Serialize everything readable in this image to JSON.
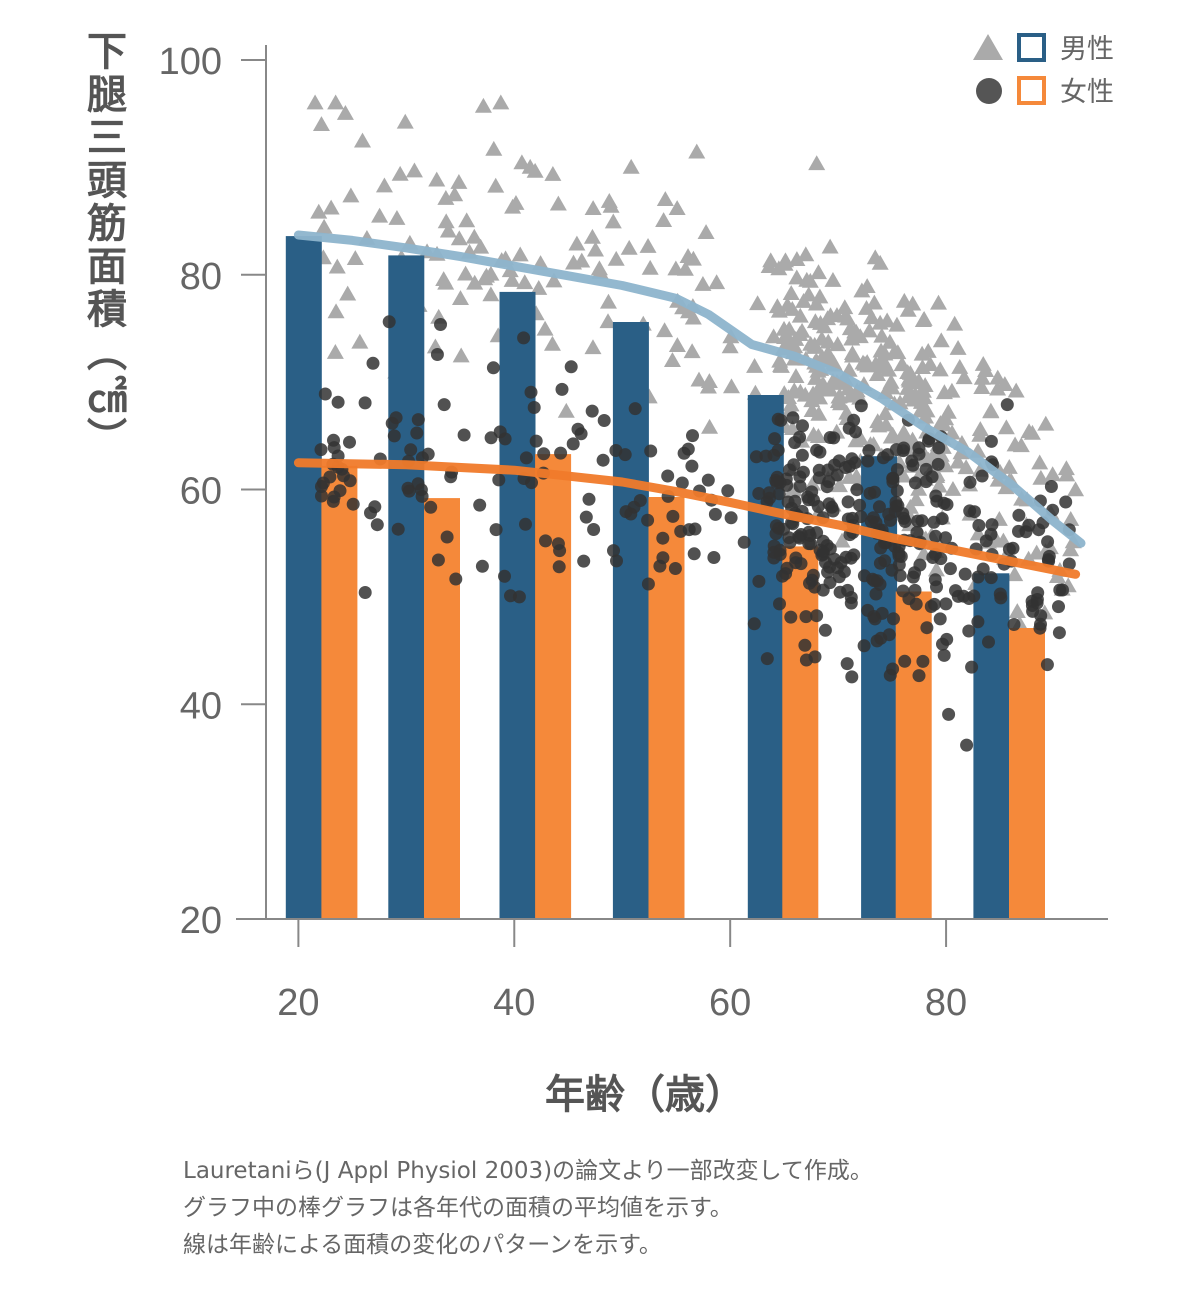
{
  "chart_data": {
    "type": "bar",
    "title": "",
    "xlabel": "年齢（歳）",
    "ylabel": "下腿三頭筋面積（㎠）",
    "xlim": [
      17,
      95
    ],
    "ylim": [
      20,
      100
    ],
    "x_ticks": [
      20,
      40,
      60,
      80
    ],
    "y_ticks": [
      20,
      40,
      60,
      80,
      100
    ],
    "colors": {
      "male_bar": "#2a5f86",
      "female_bar": "#f5893a",
      "male_line": "#8db4cc",
      "female_line": "#f07a2a",
      "male_point": "#aaaaaa",
      "female_point": "#333333"
    },
    "legend": [
      {
        "marker": "triangle",
        "swatch": "male_bar",
        "label": "男性"
      },
      {
        "marker": "circle",
        "swatch": "female_bar",
        "label": "女性"
      }
    ],
    "series": [
      {
        "name": "男性",
        "kind": "bar",
        "x": [
          20.5,
          30,
          40.3,
          50.8,
          63.3,
          73.8,
          84.2
        ],
        "values": [
          83.6,
          81.8,
          78.4,
          75.6,
          68.8,
          63.1,
          52.2
        ]
      },
      {
        "name": "女性",
        "kind": "bar",
        "x": [
          23.8,
          33.3,
          43.6,
          54.1,
          66.5,
          77,
          87.5
        ],
        "values": [
          62.2,
          59.2,
          63.3,
          59.3,
          54.7,
          50.5,
          47.1
        ]
      },
      {
        "name": "男性",
        "kind": "line",
        "x": [
          20,
          25,
          30,
          35,
          40,
          45,
          50,
          55,
          58,
          62,
          66,
          70,
          74,
          78,
          82,
          86,
          90,
          92.5
        ],
        "values": [
          83.7,
          83.2,
          82.5,
          81.7,
          80.8,
          79.9,
          79,
          77.8,
          76.3,
          73.5,
          72.4,
          70.8,
          68.5,
          65.8,
          63.5,
          60.5,
          57,
          55
        ]
      },
      {
        "name": "女性",
        "kind": "line",
        "x": [
          20,
          30,
          40,
          50,
          55,
          60,
          65,
          70,
          75,
          80,
          85,
          92
        ],
        "values": [
          62.5,
          62.3,
          61.8,
          60.7,
          59.8,
          58.8,
          57.7,
          56.7,
          55.5,
          54.5,
          53.5,
          52.1
        ]
      },
      {
        "name": "男性",
        "kind": "scatter",
        "marker": "triangle",
        "count": 470
      },
      {
        "name": "女性",
        "kind": "scatter",
        "marker": "circle",
        "count": 450
      }
    ]
  },
  "caption": [
    "Lauretaniら(J Appl Physiol 2003)の論文より一部改変して作成。",
    "グラフ中の棒グラフは各年代の面積の平均値を示す。",
    "線は年齢による面積の変化のパターンを示す。"
  ]
}
